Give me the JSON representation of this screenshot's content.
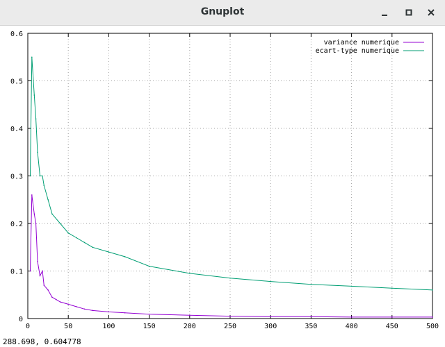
{
  "window": {
    "title": "Gnuplot",
    "minimize_icon": "minimize-icon",
    "maximize_icon": "maximize-icon",
    "close_icon": "close-icon"
  },
  "status": {
    "coordinates": "288.698,  0.604778"
  },
  "chart_data": {
    "type": "line",
    "title": "",
    "xlabel": "",
    "ylabel": "",
    "xlim": [
      0,
      500
    ],
    "ylim": [
      0,
      0.6
    ],
    "grid": true,
    "legend_position": "top-right",
    "xticks": [
      0,
      50,
      100,
      150,
      200,
      250,
      300,
      350,
      400,
      450,
      500
    ],
    "yticks": [
      0,
      0.1,
      0.2,
      0.3,
      0.4,
      0.5,
      0.6
    ],
    "series": [
      {
        "name": "variance numerique",
        "color": "#9400d3",
        "x": [
          3,
          5,
          8,
          10,
          12,
          15,
          18,
          20,
          25,
          30,
          35,
          40,
          50,
          60,
          70,
          80,
          100,
          120,
          150,
          200,
          250,
          300,
          350,
          400,
          450,
          500
        ],
        "y": [
          0.1,
          0.26,
          0.22,
          0.2,
          0.12,
          0.09,
          0.1,
          0.07,
          0.06,
          0.045,
          0.04,
          0.035,
          0.03,
          0.025,
          0.02,
          0.017,
          0.014,
          0.012,
          0.009,
          0.007,
          0.005,
          0.004,
          0.004,
          0.003,
          0.003,
          0.003
        ]
      },
      {
        "name": "ecart-type numerique",
        "color": "#009e73",
        "x": [
          3,
          5,
          8,
          10,
          12,
          15,
          18,
          20,
          25,
          30,
          40,
          50,
          60,
          70,
          80,
          100,
          120,
          150,
          200,
          250,
          300,
          350,
          400,
          450,
          500
        ],
        "y": [
          0.3,
          0.55,
          0.47,
          0.42,
          0.35,
          0.3,
          0.3,
          0.28,
          0.25,
          0.22,
          0.2,
          0.18,
          0.17,
          0.16,
          0.15,
          0.14,
          0.13,
          0.11,
          0.095,
          0.085,
          0.078,
          0.072,
          0.068,
          0.064,
          0.06
        ]
      }
    ]
  }
}
